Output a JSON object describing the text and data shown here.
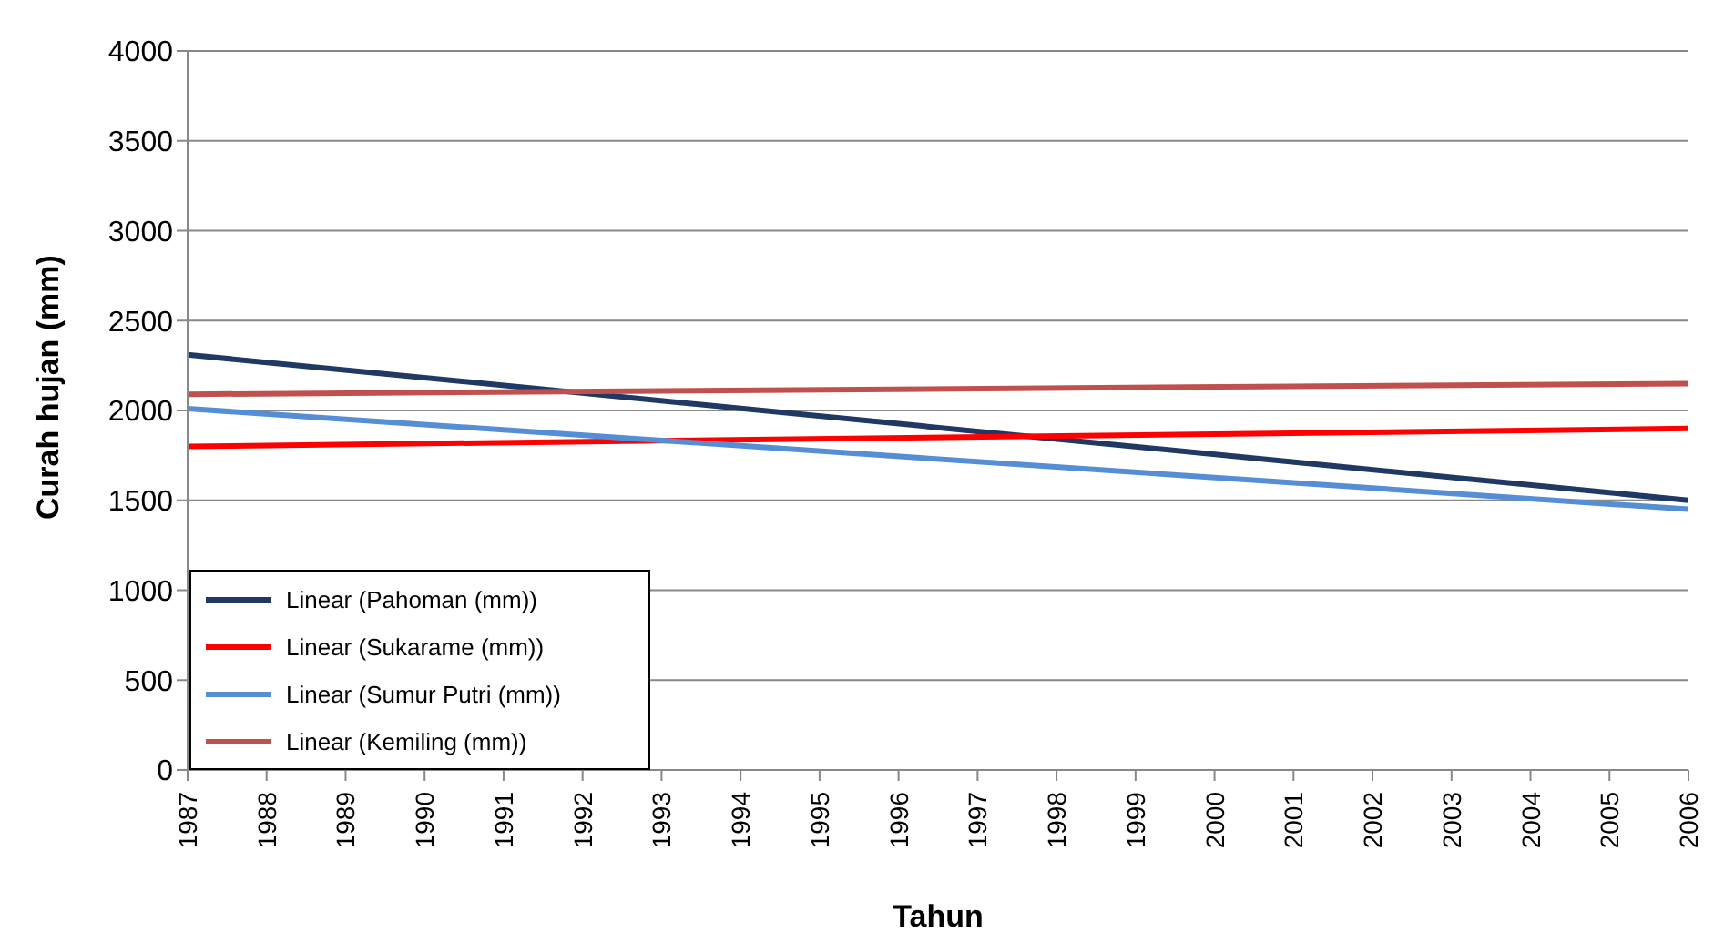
{
  "chart_data": {
    "type": "line",
    "xlabel": "Tahun",
    "ylabel": "Curah hujan (mm)",
    "x": [
      1987,
      2006
    ],
    "series": [
      {
        "name": "Linear (Pahoman (mm))",
        "color": "#1f3864",
        "values": [
          2310,
          1500
        ]
      },
      {
        "name": "Linear (Sukarame (mm))",
        "color": "#ff0000",
        "values": [
          1800,
          1900
        ]
      },
      {
        "name": "Linear (Sumur Putri (mm))",
        "color": "#558ed5",
        "values": [
          2010,
          1450
        ]
      },
      {
        "name": "Linear (Kemiling (mm))",
        "color": "#c0504d",
        "values": [
          2090,
          2150
        ]
      }
    ],
    "xlim": [
      1987,
      2006
    ],
    "xticks": [
      1987,
      1988,
      1989,
      1990,
      1991,
      1992,
      1993,
      1994,
      1995,
      1996,
      1997,
      1998,
      1999,
      2000,
      2001,
      2002,
      2003,
      2004,
      2005,
      2006
    ],
    "ylim": [
      0,
      4000
    ],
    "yticks": [
      0,
      500,
      1000,
      1500,
      2000,
      2500,
      3000,
      3500,
      4000
    ],
    "grid": "y",
    "legend": "bottom left",
    "marker": "none",
    "line_style": "solid"
  }
}
